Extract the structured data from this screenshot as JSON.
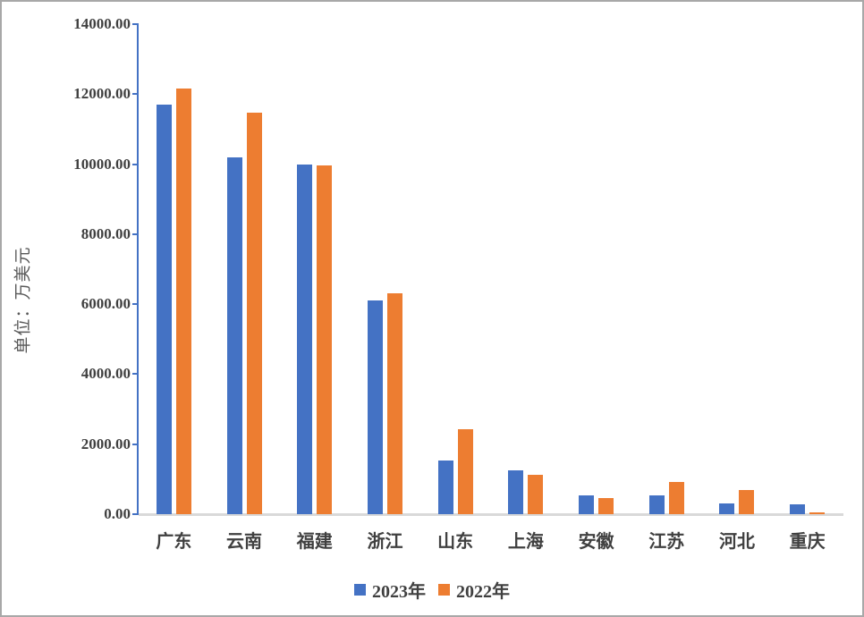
{
  "chart_data": {
    "type": "bar",
    "title": "",
    "ylabel": "单位：万美元",
    "xlabel": "",
    "categories": [
      "广东",
      "云南",
      "福建",
      "浙江",
      "山东",
      "上海",
      "安徽",
      "江苏",
      "河北",
      "重庆"
    ],
    "series": [
      {
        "name": "2023年",
        "color": "#4472C4",
        "values": [
          11700,
          10200,
          10000,
          6100,
          1530,
          1240,
          530,
          530,
          300,
          290
        ]
      },
      {
        "name": "2022年",
        "color": "#ED7D31",
        "values": [
          12150,
          11480,
          9970,
          6300,
          2430,
          1120,
          460,
          920,
          690,
          60
        ]
      }
    ],
    "ylim": [
      0,
      14000
    ],
    "ytick_step": 2000,
    "ytick_labels": [
      "0.00",
      "2000.00",
      "4000.00",
      "6000.00",
      "8000.00",
      "10000.00",
      "12000.00",
      "14000.00"
    ],
    "grid": false,
    "legend_position": "bottom"
  },
  "theme": {
    "axis_color": "#4472C4",
    "baseline_color": "#D9D9D9",
    "tick_text_color": "#404040",
    "axis_title_color": "#595959",
    "frame_border_color": "#A8A8A8",
    "background": "#FFFFFF"
  }
}
